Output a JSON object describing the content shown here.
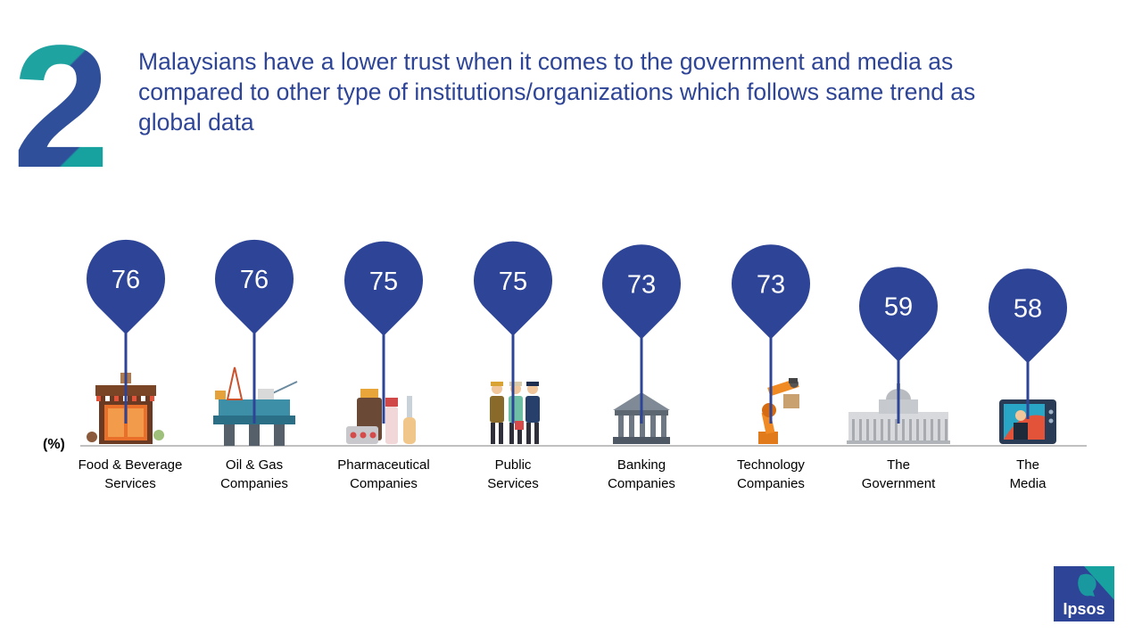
{
  "slide": {
    "number": "2",
    "headline": "Malaysians have a lower trust when it comes to the government and media as compared to other type of institutions/organizations which follows same trend as global data"
  },
  "chart_data": {
    "type": "bar",
    "unit_label": "(%)",
    "categories": [
      [
        "Food & Beverage",
        "Services"
      ],
      [
        "Oil & Gas",
        "Companies"
      ],
      [
        "Pharmaceutical",
        "Companies"
      ],
      [
        "Public",
        "Services"
      ],
      [
        "Banking",
        "Companies"
      ],
      [
        "Technology",
        "Companies"
      ],
      [
        "The",
        "Government"
      ],
      [
        "The",
        "Media"
      ]
    ],
    "values": [
      76,
      76,
      75,
      75,
      73,
      73,
      59,
      58
    ],
    "icons": [
      "cafe-icon",
      "oil-rig-icon",
      "medicine-icon",
      "public-workers-icon",
      "bank-icon",
      "robot-arm-icon",
      "government-building-icon",
      "tv-news-icon"
    ],
    "marker_color": "#2e4597"
  },
  "logo": {
    "text": "Ipsos",
    "color_top": "#17a2a0",
    "color_bottom": "#2e4597"
  }
}
